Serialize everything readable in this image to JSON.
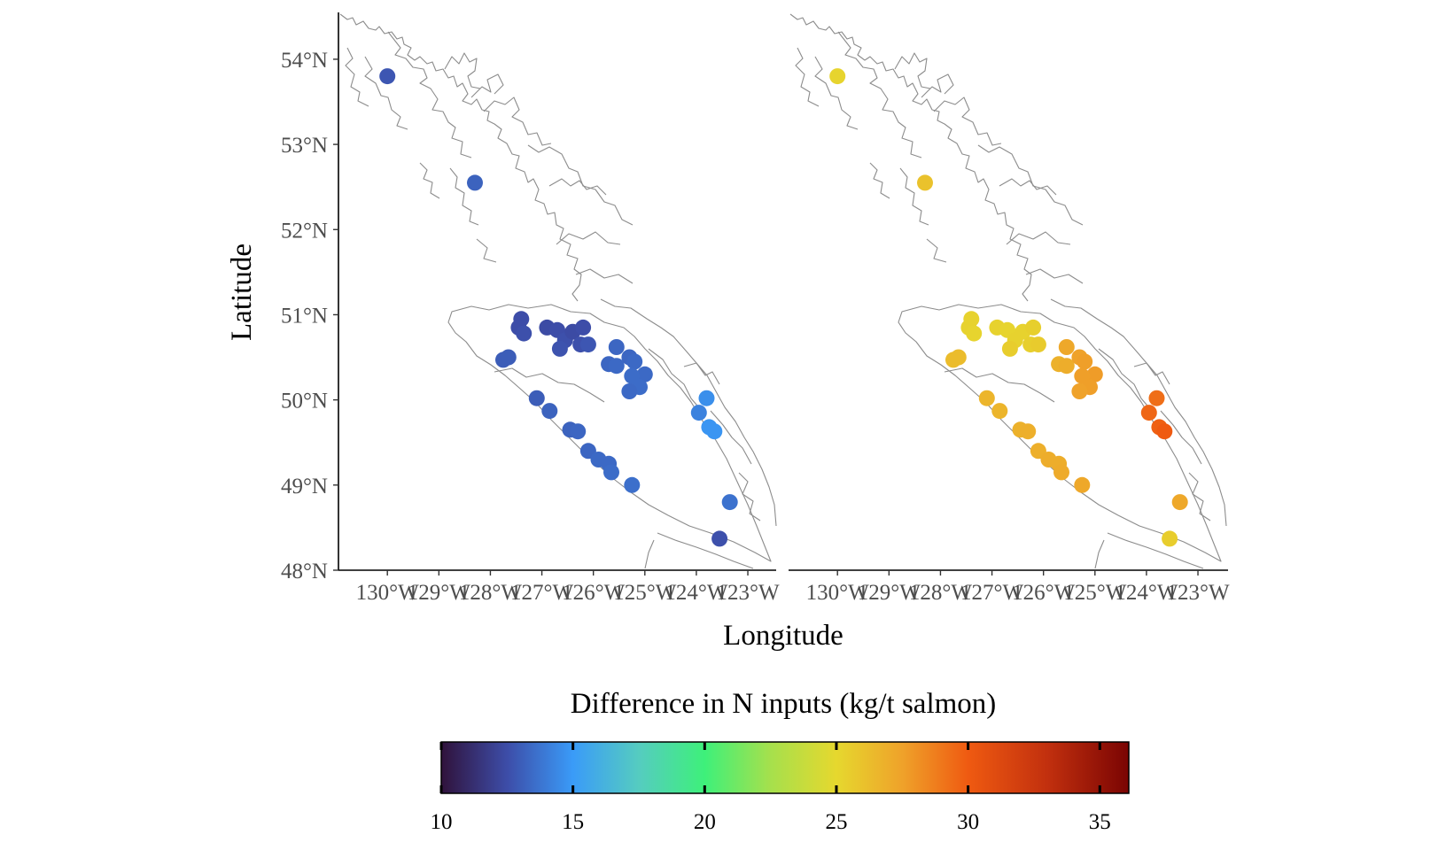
{
  "chart_data": {
    "type": "scatter",
    "x_axis": {
      "label": "Longitude",
      "ticks": [
        -130,
        -129,
        -128,
        -127,
        -126,
        -125,
        -124,
        -123
      ],
      "tick_labels": [
        "130°W",
        "129°W",
        "128°W",
        "127°W",
        "126°W",
        "125°W",
        "124°W",
        "123°W"
      ],
      "range": [
        -130.95,
        -122.45
      ]
    },
    "y_axis": {
      "label": "Latitude",
      "ticks": [
        48,
        49,
        50,
        51,
        52,
        53,
        54
      ],
      "tick_labels": [
        "48°N",
        "49°N",
        "50°N",
        "51°N",
        "52°N",
        "53°N",
        "54°N"
      ],
      "range": [
        48.0,
        54.55
      ]
    },
    "colorbar": {
      "title": "Difference in N inputs (kg/t salmon)",
      "min": 10,
      "max": 36.1,
      "ticks": [
        10,
        15,
        20,
        25,
        30,
        35
      ],
      "stops": [
        {
          "value": 10,
          "color": "#30123b"
        },
        {
          "value": 12.5,
          "color": "#3d4da8"
        },
        {
          "value": 15,
          "color": "#3a9bf8"
        },
        {
          "value": 17.5,
          "color": "#55ccc0"
        },
        {
          "value": 20,
          "color": "#3ef07a"
        },
        {
          "value": 22.5,
          "color": "#a6e04c"
        },
        {
          "value": 25,
          "color": "#e6d82e"
        },
        {
          "value": 27.5,
          "color": "#efa22a"
        },
        {
          "value": 30,
          "color": "#ef5a11"
        },
        {
          "value": 33,
          "color": "#c2300e"
        },
        {
          "value": 36.1,
          "color": "#7a0403"
        }
      ]
    },
    "panels": [
      {
        "name": "left",
        "points": [
          {
            "lon": -130.0,
            "lat": 53.8,
            "value": 12.8
          },
          {
            "lon": -128.3,
            "lat": 52.55,
            "value": 13.2
          },
          {
            "lon": -127.4,
            "lat": 50.95,
            "value": 12.5
          },
          {
            "lon": -127.45,
            "lat": 50.85,
            "value": 12.5
          },
          {
            "lon": -127.35,
            "lat": 50.78,
            "value": 12.6
          },
          {
            "lon": -126.9,
            "lat": 50.85,
            "value": 12.4
          },
          {
            "lon": -126.7,
            "lat": 50.82,
            "value": 12.5
          },
          {
            "lon": -126.55,
            "lat": 50.7,
            "value": 12.6
          },
          {
            "lon": -126.4,
            "lat": 50.8,
            "value": 12.4
          },
          {
            "lon": -126.2,
            "lat": 50.85,
            "value": 12.5
          },
          {
            "lon": -126.25,
            "lat": 50.65,
            "value": 12.6
          },
          {
            "lon": -126.1,
            "lat": 50.65,
            "value": 12.8
          },
          {
            "lon": -126.65,
            "lat": 50.6,
            "value": 12.7
          },
          {
            "lon": -127.75,
            "lat": 50.47,
            "value": 13.0
          },
          {
            "lon": -127.65,
            "lat": 50.5,
            "value": 13.0
          },
          {
            "lon": -125.55,
            "lat": 50.62,
            "value": 13.3
          },
          {
            "lon": -125.7,
            "lat": 50.42,
            "value": 13.3
          },
          {
            "lon": -125.55,
            "lat": 50.4,
            "value": 13.4
          },
          {
            "lon": -125.3,
            "lat": 50.5,
            "value": 13.3
          },
          {
            "lon": -125.2,
            "lat": 50.45,
            "value": 13.4
          },
          {
            "lon": -125.0,
            "lat": 50.3,
            "value": 13.4
          },
          {
            "lon": -125.25,
            "lat": 50.28,
            "value": 13.5
          },
          {
            "lon": -125.1,
            "lat": 50.15,
            "value": 13.5
          },
          {
            "lon": -125.3,
            "lat": 50.1,
            "value": 13.4
          },
          {
            "lon": -127.1,
            "lat": 50.02,
            "value": 13.0
          },
          {
            "lon": -126.85,
            "lat": 49.87,
            "value": 13.2
          },
          {
            "lon": -126.45,
            "lat": 49.65,
            "value": 13.2
          },
          {
            "lon": -126.3,
            "lat": 49.63,
            "value": 13.3
          },
          {
            "lon": -126.1,
            "lat": 49.4,
            "value": 13.3
          },
          {
            "lon": -125.9,
            "lat": 49.3,
            "value": 13.4
          },
          {
            "lon": -125.7,
            "lat": 49.25,
            "value": 13.4
          },
          {
            "lon": -125.65,
            "lat": 49.15,
            "value": 13.5
          },
          {
            "lon": -125.25,
            "lat": 49.0,
            "value": 13.6
          },
          {
            "lon": -123.95,
            "lat": 49.85,
            "value": 14.2
          },
          {
            "lon": -123.8,
            "lat": 50.02,
            "value": 14.6
          },
          {
            "lon": -123.75,
            "lat": 49.68,
            "value": 14.8
          },
          {
            "lon": -123.65,
            "lat": 49.63,
            "value": 14.8
          },
          {
            "lon": -123.35,
            "lat": 48.8,
            "value": 13.7
          },
          {
            "lon": -123.55,
            "lat": 48.37,
            "value": 12.6
          }
        ]
      },
      {
        "name": "right",
        "points": [
          {
            "lon": -130.0,
            "lat": 53.8,
            "value": 25.2
          },
          {
            "lon": -128.3,
            "lat": 52.55,
            "value": 26.0
          },
          {
            "lon": -127.4,
            "lat": 50.95,
            "value": 25.3
          },
          {
            "lon": -127.45,
            "lat": 50.85,
            "value": 25.3
          },
          {
            "lon": -127.35,
            "lat": 50.78,
            "value": 25.2
          },
          {
            "lon": -126.9,
            "lat": 50.85,
            "value": 25.3
          },
          {
            "lon": -126.7,
            "lat": 50.82,
            "value": 25.2
          },
          {
            "lon": -126.55,
            "lat": 50.7,
            "value": 25.3
          },
          {
            "lon": -126.4,
            "lat": 50.8,
            "value": 25.3
          },
          {
            "lon": -126.2,
            "lat": 50.85,
            "value": 25.4
          },
          {
            "lon": -126.25,
            "lat": 50.65,
            "value": 25.4
          },
          {
            "lon": -126.1,
            "lat": 50.65,
            "value": 25.6
          },
          {
            "lon": -126.65,
            "lat": 50.6,
            "value": 25.5
          },
          {
            "lon": -127.75,
            "lat": 50.47,
            "value": 26.3
          },
          {
            "lon": -127.65,
            "lat": 50.5,
            "value": 26.3
          },
          {
            "lon": -125.55,
            "lat": 50.62,
            "value": 27.2
          },
          {
            "lon": -125.7,
            "lat": 50.42,
            "value": 26.8
          },
          {
            "lon": -125.55,
            "lat": 50.4,
            "value": 27.0
          },
          {
            "lon": -125.3,
            "lat": 50.5,
            "value": 27.5
          },
          {
            "lon": -125.2,
            "lat": 50.45,
            "value": 27.6
          },
          {
            "lon": -125.0,
            "lat": 50.3,
            "value": 27.7
          },
          {
            "lon": -125.25,
            "lat": 50.28,
            "value": 27.6
          },
          {
            "lon": -125.1,
            "lat": 50.15,
            "value": 27.6
          },
          {
            "lon": -125.3,
            "lat": 50.1,
            "value": 27.5
          },
          {
            "lon": -127.1,
            "lat": 50.02,
            "value": 26.6
          },
          {
            "lon": -126.85,
            "lat": 49.87,
            "value": 26.6
          },
          {
            "lon": -126.45,
            "lat": 49.65,
            "value": 26.8
          },
          {
            "lon": -126.3,
            "lat": 49.63,
            "value": 26.9
          },
          {
            "lon": -126.1,
            "lat": 49.4,
            "value": 26.9
          },
          {
            "lon": -125.9,
            "lat": 49.3,
            "value": 27.0
          },
          {
            "lon": -125.7,
            "lat": 49.25,
            "value": 27.0
          },
          {
            "lon": -125.65,
            "lat": 49.15,
            "value": 27.1
          },
          {
            "lon": -125.25,
            "lat": 49.0,
            "value": 27.2
          },
          {
            "lon": -123.95,
            "lat": 49.85,
            "value": 29.6
          },
          {
            "lon": -123.8,
            "lat": 50.02,
            "value": 29.3
          },
          {
            "lon": -123.75,
            "lat": 49.68,
            "value": 29.8
          },
          {
            "lon": -123.65,
            "lat": 49.63,
            "value": 30.0
          },
          {
            "lon": -123.35,
            "lat": 48.8,
            "value": 27.2
          },
          {
            "lon": -123.55,
            "lat": 48.37,
            "value": 25.5
          }
        ]
      }
    ]
  }
}
